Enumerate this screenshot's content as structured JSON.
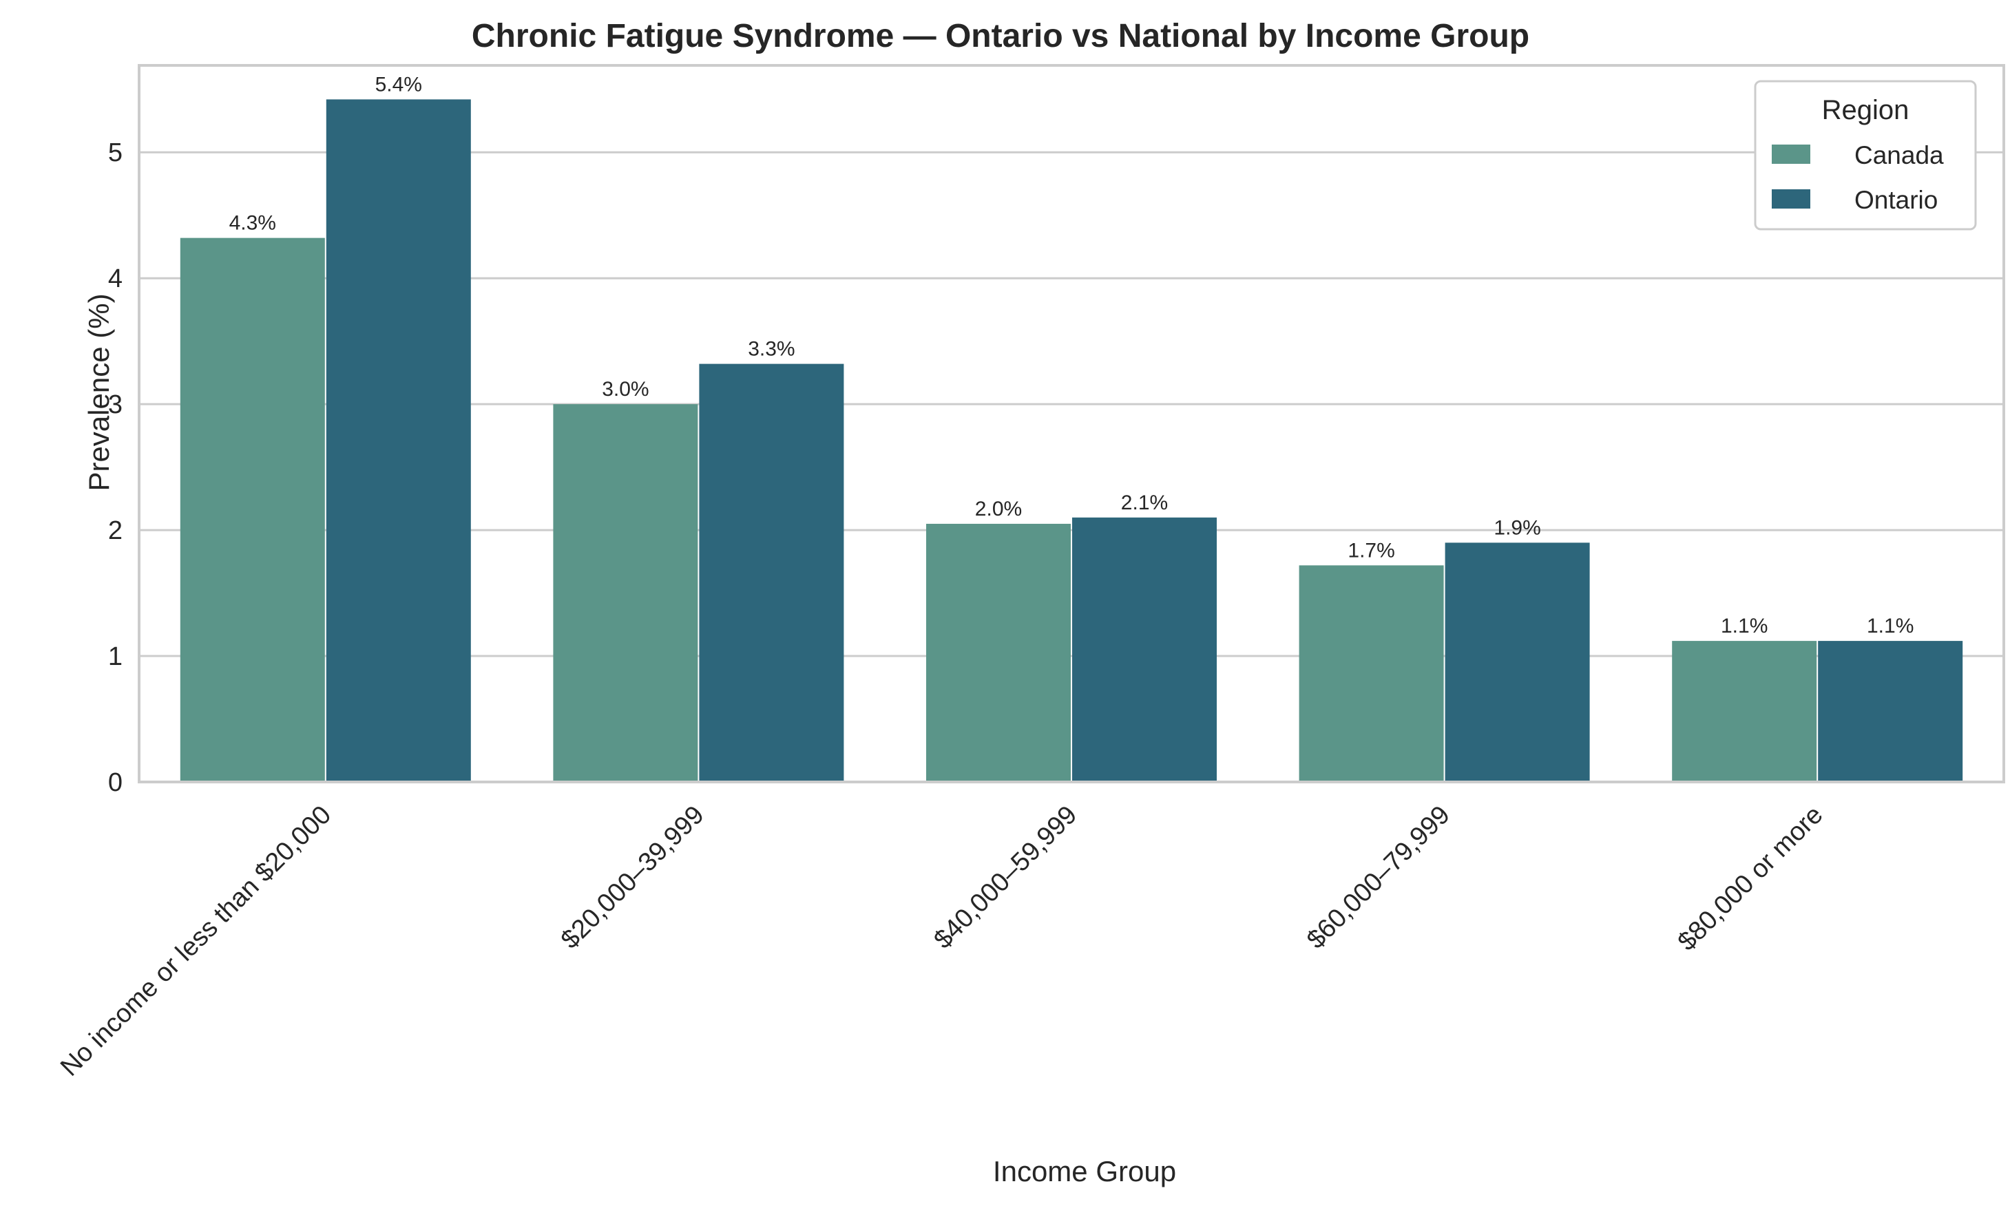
{
  "chart_data": {
    "type": "bar",
    "title": "Chronic Fatigue Syndrome — Ontario vs National by Income Group",
    "xlabel": "Income Group",
    "ylabel": "Prevalence (%)",
    "categories": [
      "No income or less than $20,000",
      "$20,000–39,999",
      "$40,000–59,999",
      "$60,000–79,999",
      "$80,000 or more"
    ],
    "series": [
      {
        "name": "Canada",
        "color": "#5b9589",
        "values": [
          4.32,
          3.0,
          2.05,
          1.72,
          1.12
        ],
        "labels": [
          "4.3%",
          "3.0%",
          "2.0%",
          "1.7%",
          "1.1%"
        ]
      },
      {
        "name": "Ontario",
        "color": "#2d667b",
        "values": [
          5.42,
          3.32,
          2.1,
          1.9,
          1.12
        ],
        "labels": [
          "5.4%",
          "3.3%",
          "2.1%",
          "1.9%",
          "1.1%"
        ]
      }
    ],
    "ylim": [
      0,
      5.69
    ],
    "yticks": [
      0,
      1,
      2,
      3,
      4,
      5
    ],
    "grid": "horizontal",
    "legend": {
      "title": "Region",
      "placement": "top-right"
    }
  }
}
